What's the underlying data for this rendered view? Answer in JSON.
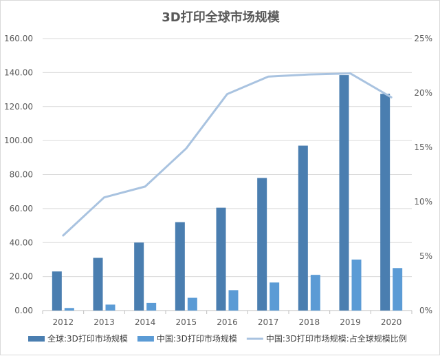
{
  "chart_data": {
    "type": "bar",
    "title": "3D打印全球市场规模",
    "categories": [
      "2012",
      "2013",
      "2014",
      "2015",
      "2016",
      "2017",
      "2018",
      "2019",
      "2020"
    ],
    "series": [
      {
        "name": "全球:3D打印市场规模",
        "type": "bar",
        "axis": "left",
        "color": "#4a7eb0",
        "values": [
          23.0,
          31.0,
          40.0,
          52.0,
          60.5,
          78.0,
          97.0,
          138.5,
          127.5
        ]
      },
      {
        "name": "中国:3D打印市场规模",
        "type": "bar",
        "axis": "left",
        "color": "#5b9bd5",
        "values": [
          1.5,
          3.5,
          4.5,
          7.5,
          12.0,
          16.5,
          21.0,
          30.0,
          25.0
        ]
      },
      {
        "name": "中国:3D打印市场规模:占全球规模比例",
        "type": "line",
        "axis": "right",
        "color": "#a9c3e0",
        "values": [
          0.069,
          0.104,
          0.114,
          0.149,
          0.199,
          0.215,
          0.217,
          0.218,
          0.196
        ]
      }
    ],
    "y_left": {
      "min": 0,
      "max": 160,
      "ticks": [
        "0.00",
        "20.00",
        "40.00",
        "60.00",
        "80.00",
        "100.00",
        "120.00",
        "140.00",
        "160.00"
      ]
    },
    "y_right": {
      "min": 0,
      "max": 0.25,
      "ticks": [
        "0%",
        "5%",
        "10%",
        "15%",
        "20%",
        "25%"
      ]
    },
    "grid": true,
    "legend_position": "bottom"
  }
}
